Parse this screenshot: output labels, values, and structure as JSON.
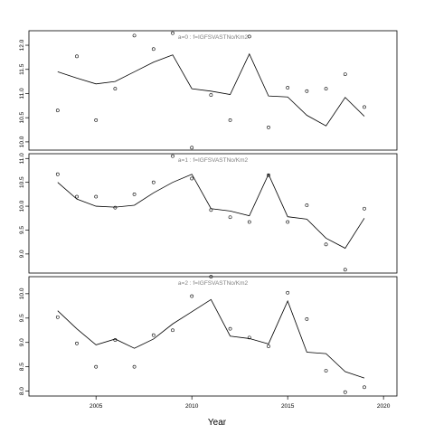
{
  "chart_data": {
    "type": "scatter",
    "layout": "three vertically stacked panels sharing one x axis",
    "xlabel": "Year",
    "xlim": [
      2001.5,
      2020.7
    ],
    "xticks": [
      2005,
      2010,
      2015,
      2020
    ],
    "series_style": {
      "observed": "open circles",
      "fitted": "black line"
    },
    "panels": [
      {
        "title": "a=0  :  f=IGFSVASTNo/Km2",
        "ylim": [
          9.83,
          12.3
        ],
        "yticks": [
          10.0,
          10.5,
          11.0,
          11.5,
          12.0
        ],
        "ytick_labels": [
          "10.0",
          "10.5",
          "11.0",
          "11.5",
          "12.0"
        ],
        "observed": [
          [
            2003,
            10.65
          ],
          [
            2004,
            11.77
          ],
          [
            2005,
            10.45
          ],
          [
            2006,
            11.1
          ],
          [
            2007,
            12.2
          ],
          [
            2008,
            11.92
          ],
          [
            2009,
            12.25
          ],
          [
            2010,
            9.88
          ],
          [
            2011,
            10.97
          ],
          [
            2012,
            10.45
          ],
          [
            2013,
            12.18
          ],
          [
            2014,
            10.3
          ],
          [
            2015,
            11.12
          ],
          [
            2016,
            11.05
          ],
          [
            2017,
            11.1
          ],
          [
            2018,
            11.4
          ],
          [
            2019,
            10.72
          ]
        ],
        "fitted": [
          [
            2003,
            11.45
          ],
          [
            2004,
            11.32
          ],
          [
            2005,
            11.2
          ],
          [
            2006,
            11.25
          ],
          [
            2007,
            11.45
          ],
          [
            2008,
            11.65
          ],
          [
            2009,
            11.8
          ],
          [
            2010,
            11.1
          ],
          [
            2011,
            11.05
          ],
          [
            2012,
            10.98
          ],
          [
            2013,
            11.82
          ],
          [
            2014,
            10.95
          ],
          [
            2015,
            10.93
          ],
          [
            2016,
            10.55
          ],
          [
            2017,
            10.33
          ],
          [
            2018,
            10.92
          ],
          [
            2019,
            10.53
          ]
        ]
      },
      {
        "title": "a=1  :  f=IGFSVASTNo/Km2",
        "ylim": [
          8.6,
          11.1
        ],
        "yticks": [
          9.0,
          9.5,
          10.0,
          10.5,
          11.0
        ],
        "ytick_labels": [
          "9.0",
          "9.5",
          "10.0",
          "10.5",
          "11.0"
        ],
        "observed": [
          [
            2003,
            10.67
          ],
          [
            2004,
            10.2
          ],
          [
            2005,
            10.2
          ],
          [
            2006,
            9.97
          ],
          [
            2007,
            10.25
          ],
          [
            2008,
            10.5
          ],
          [
            2009,
            11.05
          ],
          [
            2010,
            10.58
          ],
          [
            2011,
            9.92
          ],
          [
            2012,
            9.77
          ],
          [
            2013,
            9.67
          ],
          [
            2014,
            10.65
          ],
          [
            2015,
            9.67
          ],
          [
            2016,
            10.02
          ],
          [
            2017,
            9.2
          ],
          [
            2018,
            8.67
          ],
          [
            2019,
            9.95
          ]
        ],
        "fitted": [
          [
            2003,
            10.5
          ],
          [
            2004,
            10.15
          ],
          [
            2005,
            10.0
          ],
          [
            2006,
            9.98
          ],
          [
            2007,
            10.02
          ],
          [
            2008,
            10.28
          ],
          [
            2009,
            10.5
          ],
          [
            2010,
            10.67
          ],
          [
            2011,
            9.95
          ],
          [
            2012,
            9.9
          ],
          [
            2013,
            9.8
          ],
          [
            2014,
            10.67
          ],
          [
            2015,
            9.78
          ],
          [
            2016,
            9.73
          ],
          [
            2017,
            9.33
          ],
          [
            2018,
            9.12
          ],
          [
            2019,
            9.75
          ]
        ]
      },
      {
        "title": "a=2  :  f=IGFSVASTNo/Km2",
        "ylim": [
          7.9,
          10.35
        ],
        "yticks": [
          8.0,
          8.5,
          9.0,
          9.5,
          10.0
        ],
        "ytick_labels": [
          "8.0",
          "8.5",
          "9.0",
          "9.5",
          "10.0"
        ],
        "observed": [
          [
            2003,
            9.52
          ],
          [
            2004,
            8.98
          ],
          [
            2005,
            8.5
          ],
          [
            2006,
            9.05
          ],
          [
            2007,
            8.5
          ],
          [
            2008,
            9.15
          ],
          [
            2009,
            9.25
          ],
          [
            2010,
            9.95
          ],
          [
            2011,
            10.35
          ],
          [
            2012,
            9.28
          ],
          [
            2013,
            9.1
          ],
          [
            2014,
            8.92
          ],
          [
            2015,
            10.02
          ],
          [
            2016,
            9.48
          ],
          [
            2017,
            8.42
          ],
          [
            2018,
            7.98
          ],
          [
            2019,
            8.08
          ]
        ],
        "fitted": [
          [
            2003,
            9.65
          ],
          [
            2004,
            9.28
          ],
          [
            2005,
            8.95
          ],
          [
            2006,
            9.07
          ],
          [
            2007,
            8.88
          ],
          [
            2008,
            9.07
          ],
          [
            2009,
            9.38
          ],
          [
            2010,
            9.63
          ],
          [
            2011,
            9.88
          ],
          [
            2012,
            9.13
          ],
          [
            2013,
            9.08
          ],
          [
            2014,
            8.97
          ],
          [
            2015,
            9.85
          ],
          [
            2016,
            8.8
          ],
          [
            2017,
            8.77
          ],
          [
            2018,
            8.4
          ],
          [
            2019,
            8.27
          ]
        ]
      }
    ]
  }
}
